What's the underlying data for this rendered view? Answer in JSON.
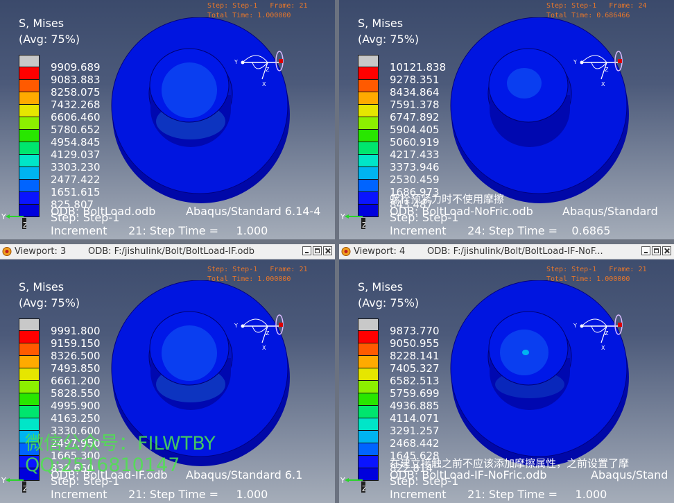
{
  "viewports": [
    {
      "id": "vp1",
      "has_titlebar": false,
      "title_name": "",
      "title_odb": "",
      "step_line": "Step: Step-1   Frame: 21",
      "total_time_line": "Total Time: 1.000000",
      "field_label": "S, Mises",
      "avg_label": "(Avg: 75%)",
      "legend_values": [
        "9909.689",
        "9083.883",
        "8258.075",
        "7432.268",
        "6606.460",
        "5780.652",
        "4954.845",
        "4129.037",
        "3303.230",
        "2477.422",
        "1651.615",
        "825.807"
      ],
      "odb_text": "ODB: BoltLoad.odb",
      "solver_text": "Abaqus/Standard 6.14-4",
      "step_text": "Step: Step-1",
      "increment_text": "Increment      21: Step Time =     1.000",
      "overlay_caption": ""
    },
    {
      "id": "vp2",
      "has_titlebar": false,
      "title_name": "",
      "title_odb": "",
      "step_line": "Step: Step-1   Frame: 24",
      "total_time_line": "Total Time: 0.686466",
      "field_label": "S, Mises",
      "avg_label": "(Avg: 75%)",
      "legend_values": [
        "10121.838",
        "9278.351",
        "8434.864",
        "7591.378",
        "6747.892",
        "5904.405",
        "5060.919",
        "4217.433",
        "3373.946",
        "2530.459",
        "1686.973",
        "843.487"
      ],
      "odb_text": "ODB: BoltLoad-NoFric.odb",
      "solver_text": "Abaqus/Standard",
      "step_text": "Step: Step-1",
      "increment_text": "Increment      24: Step Time =    0.6865",
      "overlay_caption": "螺栓预紧力时不使用摩擦"
    },
    {
      "id": "vp3",
      "has_titlebar": true,
      "title_name": "Viewport: 3",
      "title_odb": "ODB: F:/jishulink/Bolt/BoltLoad-IF.odb",
      "step_line": "Step: Step-1   Frame: 21",
      "total_time_line": "Total Time: 1.000000",
      "field_label": "S, Mises",
      "avg_label": "(Avg: 75%)",
      "legend_values": [
        "9991.800",
        "9159.150",
        "8326.500",
        "7493.850",
        "6661.200",
        "5828.550",
        "4995.900",
        "4163.250",
        "3330.600",
        "2497.950",
        "1665.300",
        "832.650"
      ],
      "odb_text": "ODB: BoltLoad-IF.odb",
      "solver_text": "Abaqus/Standard 6.1",
      "step_text": "Step: Step-1",
      "increment_text": "Increment      21: Step Time =     1.000",
      "overlay_caption": ""
    },
    {
      "id": "vp4",
      "has_titlebar": true,
      "title_name": "Viewport: 4",
      "title_odb": "ODB: F:/jishulink/Bolt/BoltLoad-IF-NoF...",
      "step_line": "Step: Step-1   Frame: 21",
      "total_time_line": "Total Time: 1.000000",
      "field_label": "S, Mises",
      "avg_label": "(Avg: 75%)",
      "legend_values": [
        "9873.770",
        "9050.955",
        "8228.141",
        "7405.327",
        "6582.513",
        "5759.699",
        "4936.885",
        "4114.071",
        "3291.257",
        "2468.442",
        "1645.628",
        "822.814"
      ],
      "odb_text": "ODB: BoltLoad-IF-NoFric.odb",
      "solver_text": "Abaqus/Stand",
      "step_text": "Step: Step-1",
      "increment_text": "Increment      21: Step Time =     1.000",
      "overlay_caption": "在建立接触之前不应该添加摩擦属性，之前设置了摩"
    }
  ],
  "legend_colors": [
    "#c8c8c8",
    "#ff0000",
    "#ff5a00",
    "#ffaa00",
    "#e6e600",
    "#8cf000",
    "#28e600",
    "#00e66e",
    "#00e6c8",
    "#00b4f0",
    "#0064ff",
    "#0a14ff",
    "#0000dc"
  ],
  "triad_labels": {
    "y": "Y",
    "z": "Z"
  },
  "csys_labels": {
    "y": "Y",
    "z": "Z",
    "x": "X"
  },
  "watermark": {
    "line1": "微信公众号：FILWTBY",
    "line2": "QQ:2516810147"
  }
}
